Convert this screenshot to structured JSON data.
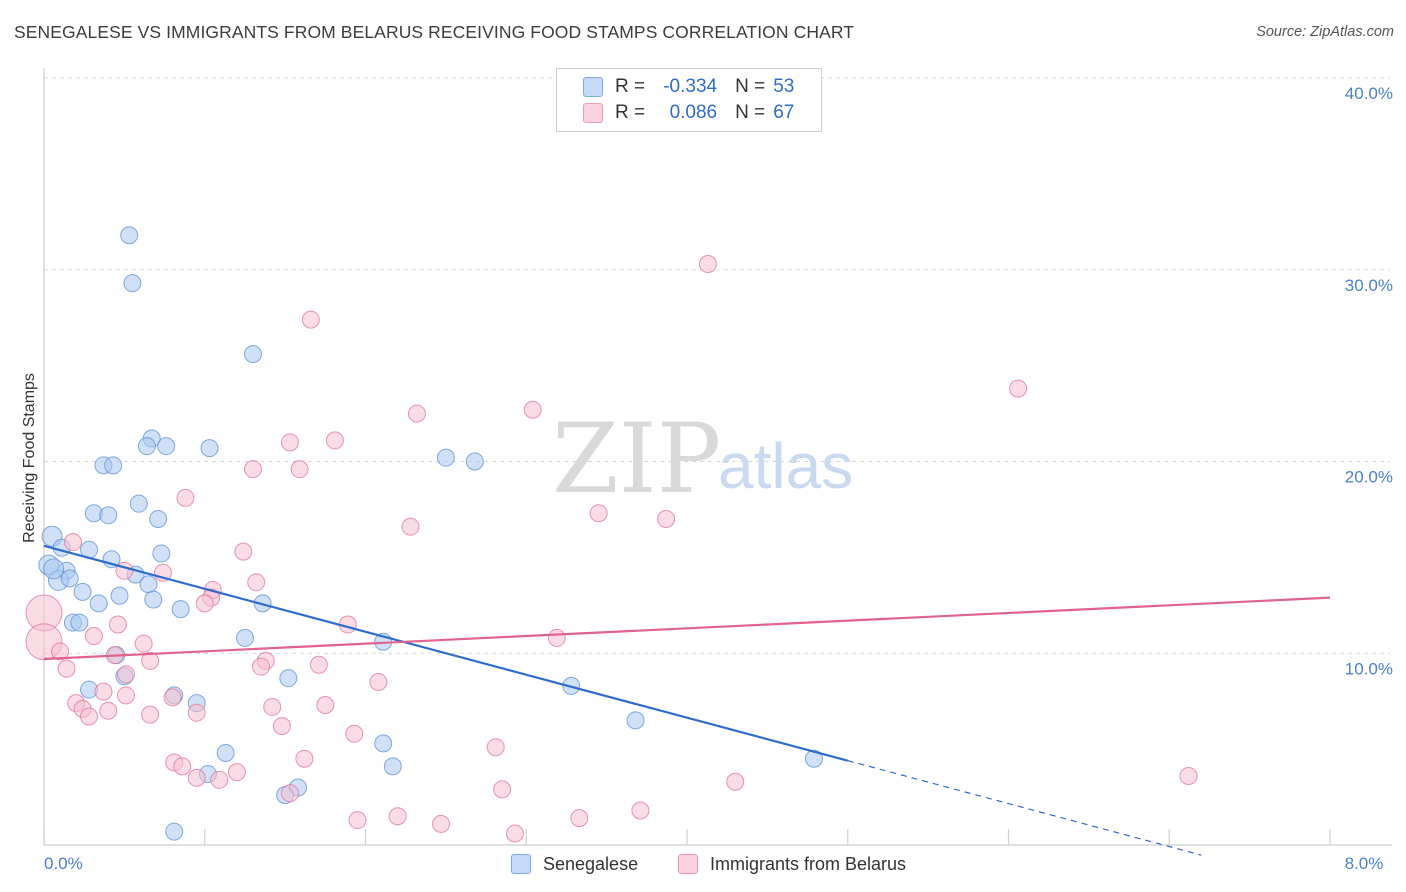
{
  "title": "SENEGALESE VS IMMIGRANTS FROM BELARUS RECEIVING FOOD STAMPS CORRELATION CHART",
  "source": "Source: ZipAtlas.com",
  "watermark": {
    "part1": "ZIP",
    "part2": "atlas"
  },
  "legend": {
    "rows": [
      {
        "label": "R =",
        "r_value": "-0.334",
        "n_label": "N =",
        "n_value": "53",
        "color": "#a9c8f0"
      },
      {
        "label": "R =",
        "r_value": "0.086",
        "n_label": "N =",
        "n_value": "67",
        "color": "#f6bfd0"
      }
    ]
  },
  "bottom_legend": [
    {
      "label": "Senegalese",
      "color": "#a9c8f0"
    },
    {
      "label": "Immigrants from Belarus",
      "color": "#f6bfd0"
    }
  ],
  "chart_data": {
    "type": "scatter",
    "xlabel": "",
    "ylabel": "Receiving Food Stamps",
    "xlim": [
      0,
      8
    ],
    "ylim": [
      0,
      40
    ],
    "x_tick_labels": [
      {
        "value": 0,
        "label": "0.0%"
      },
      {
        "value": 8,
        "label": "8.0%"
      }
    ],
    "y_tick_labels": [
      {
        "value": 10,
        "label": "10.0%"
      },
      {
        "value": 20,
        "label": "20.0%"
      },
      {
        "value": 30,
        "label": "30.0%"
      },
      {
        "value": 40,
        "label": "40.0%"
      }
    ],
    "grid": "horizontal dashed",
    "legend_position": "top-center",
    "series": [
      {
        "name": "Senegalese",
        "color": "#5b8fd6",
        "fill": "#a9c8f0",
        "trend": {
          "x": [
            0.0,
            5.0
          ],
          "y": [
            15.6,
            4.4
          ],
          "dashed_to_x": 7.2
        },
        "points": [
          [
            0.53,
            31.8
          ],
          [
            0.55,
            29.3
          ],
          [
            1.3,
            25.6
          ],
          [
            0.67,
            21.2
          ],
          [
            0.64,
            20.8
          ],
          [
            0.76,
            20.8
          ],
          [
            1.03,
            20.7
          ],
          [
            0.37,
            19.8
          ],
          [
            0.43,
            19.8
          ],
          [
            2.5,
            20.2
          ],
          [
            2.68,
            20.0
          ],
          [
            0.59,
            17.8
          ],
          [
            0.31,
            17.3
          ],
          [
            0.4,
            17.2
          ],
          [
            0.71,
            17.0
          ],
          [
            0.05,
            16.1
          ],
          [
            0.11,
            15.5
          ],
          [
            0.28,
            15.4
          ],
          [
            0.73,
            15.2
          ],
          [
            0.42,
            14.9
          ],
          [
            0.03,
            14.6
          ],
          [
            0.14,
            14.3
          ],
          [
            0.57,
            14.1
          ],
          [
            0.09,
            13.8
          ],
          [
            0.16,
            13.9
          ],
          [
            0.65,
            13.6
          ],
          [
            0.24,
            13.2
          ],
          [
            0.47,
            13.0
          ],
          [
            0.68,
            12.8
          ],
          [
            0.34,
            12.6
          ],
          [
            1.36,
            12.6
          ],
          [
            0.85,
            12.3
          ],
          [
            0.18,
            11.6
          ],
          [
            0.22,
            11.6
          ],
          [
            1.25,
            10.8
          ],
          [
            2.11,
            10.6
          ],
          [
            0.45,
            9.9
          ],
          [
            0.5,
            8.8
          ],
          [
            1.52,
            8.7
          ],
          [
            3.28,
            8.3
          ],
          [
            0.28,
            8.1
          ],
          [
            0.81,
            7.8
          ],
          [
            0.95,
            7.4
          ],
          [
            3.68,
            6.5
          ],
          [
            2.11,
            5.3
          ],
          [
            1.13,
            4.8
          ],
          [
            4.79,
            4.5
          ],
          [
            2.17,
            4.1
          ],
          [
            1.02,
            3.7
          ],
          [
            1.58,
            3.0
          ],
          [
            1.5,
            2.6
          ],
          [
            0.81,
            0.7
          ],
          [
            0.06,
            14.4
          ]
        ]
      },
      {
        "name": "Immigrants from Belarus",
        "color": "#e07399",
        "fill": "#f6bfd0",
        "trend": {
          "x": [
            0.0,
            8.0
          ],
          "y": [
            9.7,
            12.9
          ]
        },
        "points": [
          [
            4.13,
            30.3
          ],
          [
            1.66,
            27.4
          ],
          [
            6.06,
            23.8
          ],
          [
            3.04,
            22.7
          ],
          [
            2.32,
            22.5
          ],
          [
            1.53,
            21.0
          ],
          [
            1.81,
            21.1
          ],
          [
            1.3,
            19.6
          ],
          [
            1.59,
            19.6
          ],
          [
            0.88,
            18.1
          ],
          [
            3.45,
            17.3
          ],
          [
            3.87,
            17.0
          ],
          [
            2.28,
            16.6
          ],
          [
            0.18,
            15.8
          ],
          [
            1.24,
            15.3
          ],
          [
            0.5,
            14.3
          ],
          [
            0.74,
            14.2
          ],
          [
            1.32,
            13.7
          ],
          [
            1.05,
            13.3
          ],
          [
            1.04,
            12.9
          ],
          [
            1.0,
            12.6
          ],
          [
            0.0,
            12.1
          ],
          [
            1.89,
            11.5
          ],
          [
            0.46,
            11.5
          ],
          [
            0.31,
            10.9
          ],
          [
            3.19,
            10.8
          ],
          [
            0.0,
            10.6
          ],
          [
            0.62,
            10.5
          ],
          [
            0.1,
            10.1
          ],
          [
            0.44,
            9.9
          ],
          [
            0.66,
            9.6
          ],
          [
            1.38,
            9.6
          ],
          [
            1.35,
            9.3
          ],
          [
            1.71,
            9.4
          ],
          [
            0.14,
            9.2
          ],
          [
            0.51,
            8.9
          ],
          [
            2.08,
            8.5
          ],
          [
            0.37,
            8.0
          ],
          [
            0.51,
            7.8
          ],
          [
            0.2,
            7.4
          ],
          [
            0.8,
            7.7
          ],
          [
            1.42,
            7.2
          ],
          [
            1.75,
            7.3
          ],
          [
            0.24,
            7.1
          ],
          [
            0.4,
            7.0
          ],
          [
            0.95,
            6.9
          ],
          [
            0.66,
            6.8
          ],
          [
            0.28,
            6.7
          ],
          [
            1.48,
            6.2
          ],
          [
            1.93,
            5.8
          ],
          [
            2.81,
            5.1
          ],
          [
            1.62,
            4.5
          ],
          [
            0.81,
            4.3
          ],
          [
            0.86,
            4.1
          ],
          [
            1.2,
            3.8
          ],
          [
            0.95,
            3.5
          ],
          [
            1.09,
            3.4
          ],
          [
            7.12,
            3.6
          ],
          [
            4.3,
            3.3
          ],
          [
            2.85,
            2.9
          ],
          [
            1.53,
            2.7
          ],
          [
            3.71,
            1.8
          ],
          [
            2.2,
            1.5
          ],
          [
            3.33,
            1.4
          ],
          [
            1.95,
            1.3
          ],
          [
            2.47,
            1.1
          ],
          [
            2.93,
            0.6
          ]
        ]
      }
    ]
  }
}
